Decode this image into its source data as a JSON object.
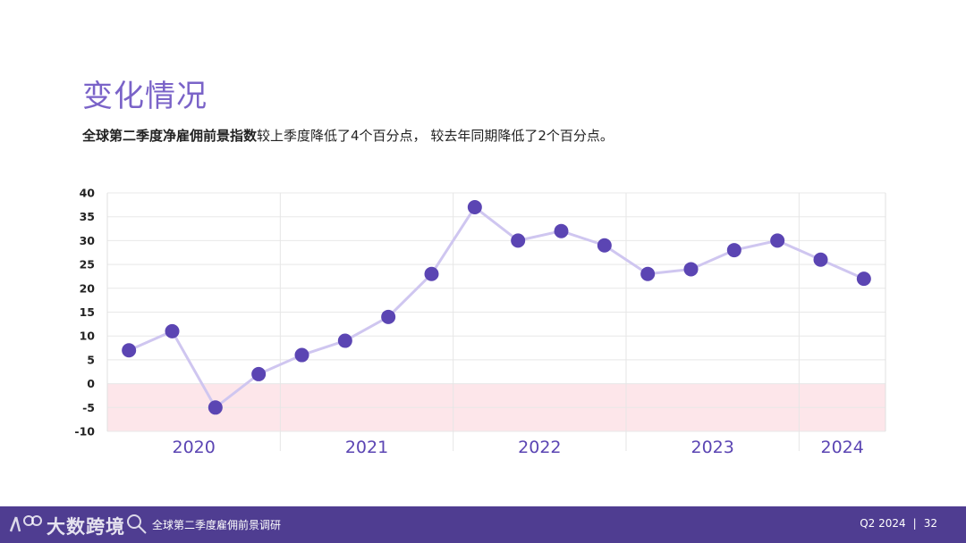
{
  "header": {
    "title": "变化情况",
    "subtitle_bold": "全球第二季度净雇佣前景指数",
    "subtitle_rest": "较上季度降低了4个百分点， 较去年同期降低了2个百分点。"
  },
  "chart_data": {
    "type": "line",
    "title": "",
    "xlabel": "",
    "ylabel": "",
    "ylim": [
      -10,
      40
    ],
    "yticks": [
      40,
      35,
      30,
      25,
      20,
      15,
      10,
      5,
      0,
      -5,
      -10
    ],
    "year_labels": [
      "2020",
      "2021",
      "2022",
      "2023",
      "2024"
    ],
    "quarters_per_year": [
      4,
      4,
      4,
      4,
      2
    ],
    "series": [
      {
        "values": [
          7,
          11,
          -5,
          2,
          6,
          9,
          14,
          23,
          37,
          30,
          32,
          29,
          23,
          24,
          28,
          30,
          26,
          22
        ]
      }
    ],
    "negative_region": [
      -10,
      0
    ],
    "colors": {
      "line": "#cfc6f0",
      "marker": "#5b45b3",
      "negative_band": "#fde6ea",
      "year_label": "#5b45b3",
      "grid": "#e8e8e8"
    },
    "grid": true
  },
  "footer": {
    "brand": "大数跨境",
    "title": "全球第二季度雇佣前景调研",
    "period": "Q2 2024",
    "separator": "|",
    "page": "32"
  }
}
